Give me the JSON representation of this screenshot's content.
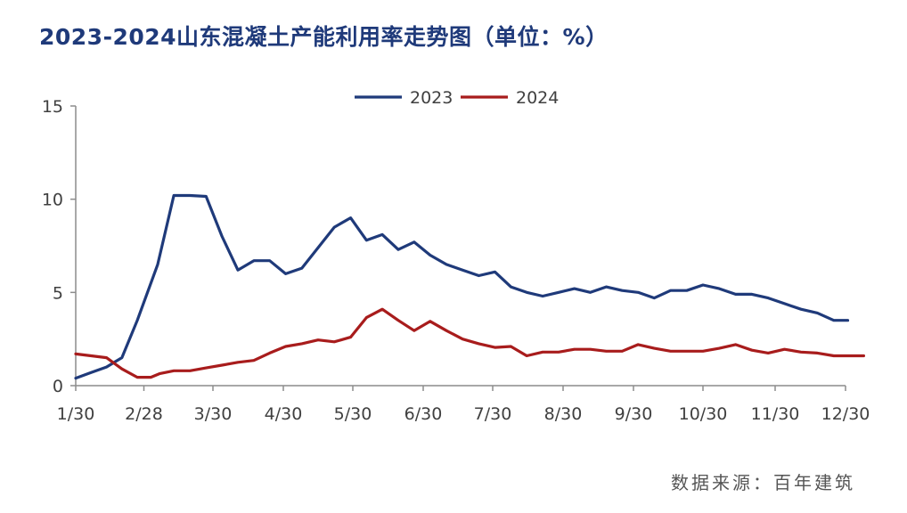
{
  "header": {
    "title": "2023-2024山东混凝土产能利用率走势图（单位：%）"
  },
  "footer": {
    "source": "数据来源：百年建筑"
  },
  "chart_data": {
    "type": "line",
    "title": "2023-2024山东混凝土产能利用率走势图（单位：%）",
    "xlabel": "",
    "ylabel": "",
    "x_ticks": [
      "1/30",
      "2/28",
      "3/30",
      "4/30",
      "5/30",
      "6/30",
      "7/30",
      "8/30",
      "9/30",
      "10/30",
      "11/30",
      "12/30"
    ],
    "y_ticks": [
      0,
      5,
      10,
      15
    ],
    "ylim": [
      0,
      15
    ],
    "xlim": [
      "1/30",
      "12/30"
    ],
    "grid": false,
    "legend_position": "top-center",
    "colors": {
      "2023": "#1f3a7a",
      "2024": "#a81c1c"
    },
    "series": [
      {
        "name": "2023",
        "points": [
          [
            "1/30",
            0.4
          ],
          [
            "2/6",
            0.7
          ],
          [
            "2/13",
            1.0
          ],
          [
            "2/20",
            1.5
          ],
          [
            "2/27",
            3.5
          ],
          [
            "3/6",
            6.5
          ],
          [
            "3/13",
            10.2
          ],
          [
            "3/20",
            10.2
          ],
          [
            "3/27",
            10.15
          ],
          [
            "4/3",
            8.0
          ],
          [
            "4/10",
            6.2
          ],
          [
            "4/17",
            6.7
          ],
          [
            "4/24",
            6.7
          ],
          [
            "5/1",
            6.0
          ],
          [
            "5/8",
            6.3
          ],
          [
            "5/15",
            7.4
          ],
          [
            "5/22",
            8.5
          ],
          [
            "5/29",
            9.0
          ],
          [
            "6/5",
            7.8
          ],
          [
            "6/12",
            8.1
          ],
          [
            "6/19",
            7.3
          ],
          [
            "6/26",
            7.7
          ],
          [
            "7/3",
            7.0
          ],
          [
            "7/10",
            6.5
          ],
          [
            "7/17",
            6.2
          ],
          [
            "7/24",
            5.9
          ],
          [
            "7/31",
            6.1
          ],
          [
            "8/7",
            5.3
          ],
          [
            "8/14",
            5.0
          ],
          [
            "8/21",
            4.8
          ],
          [
            "8/28",
            5.0
          ],
          [
            "9/4",
            5.2
          ],
          [
            "9/11",
            5.0
          ],
          [
            "9/18",
            5.3
          ],
          [
            "9/25",
            5.1
          ],
          [
            "10/2",
            5.0
          ],
          [
            "10/9",
            4.7
          ],
          [
            "10/16",
            5.1
          ],
          [
            "10/23",
            5.1
          ],
          [
            "10/30",
            5.4
          ],
          [
            "11/6",
            5.2
          ],
          [
            "11/13",
            4.9
          ],
          [
            "11/20",
            4.9
          ],
          [
            "11/27",
            4.7
          ],
          [
            "12/4",
            4.4
          ],
          [
            "12/11",
            4.1
          ],
          [
            "12/18",
            3.9
          ],
          [
            "12/25",
            3.5
          ],
          [
            "1/1",
            3.5
          ]
        ]
      },
      {
        "name": "2024",
        "points": [
          [
            "1/30",
            1.7
          ],
          [
            "2/6",
            1.6
          ],
          [
            "2/13",
            1.5
          ],
          [
            "2/20",
            0.9
          ],
          [
            "2/27",
            0.45
          ],
          [
            "3/3",
            0.45
          ],
          [
            "3/7",
            0.65
          ],
          [
            "3/13",
            0.8
          ],
          [
            "3/20",
            0.8
          ],
          [
            "3/27",
            0.95
          ],
          [
            "4/3",
            1.1
          ],
          [
            "4/10",
            1.25
          ],
          [
            "4/17",
            1.35
          ],
          [
            "4/24",
            1.75
          ],
          [
            "5/1",
            2.1
          ],
          [
            "5/8",
            2.25
          ],
          [
            "5/15",
            2.45
          ],
          [
            "5/22",
            2.35
          ],
          [
            "5/29",
            2.6
          ],
          [
            "6/5",
            3.65
          ],
          [
            "6/12",
            4.1
          ],
          [
            "6/19",
            3.5
          ],
          [
            "6/26",
            2.95
          ],
          [
            "7/3",
            3.45
          ],
          [
            "7/10",
            2.95
          ],
          [
            "7/17",
            2.5
          ],
          [
            "7/24",
            2.25
          ],
          [
            "7/31",
            2.05
          ],
          [
            "8/7",
            2.1
          ],
          [
            "8/14",
            1.6
          ],
          [
            "8/21",
            1.8
          ],
          [
            "8/28",
            1.8
          ],
          [
            "9/4",
            1.95
          ],
          [
            "9/11",
            1.95
          ],
          [
            "9/18",
            1.85
          ],
          [
            "9/25",
            1.85
          ],
          [
            "10/2",
            2.2
          ],
          [
            "10/9",
            2.0
          ],
          [
            "10/16",
            1.85
          ],
          [
            "10/23",
            1.85
          ],
          [
            "10/30",
            1.85
          ],
          [
            "11/6",
            2.0
          ],
          [
            "11/13",
            2.2
          ],
          [
            "11/20",
            1.9
          ],
          [
            "11/27",
            1.75
          ],
          [
            "12/4",
            1.95
          ],
          [
            "12/11",
            1.8
          ],
          [
            "12/18",
            1.75
          ],
          [
            "12/25",
            1.6
          ],
          [
            "1/1",
            1.6
          ],
          [
            "1/8",
            1.6
          ]
        ]
      }
    ]
  }
}
